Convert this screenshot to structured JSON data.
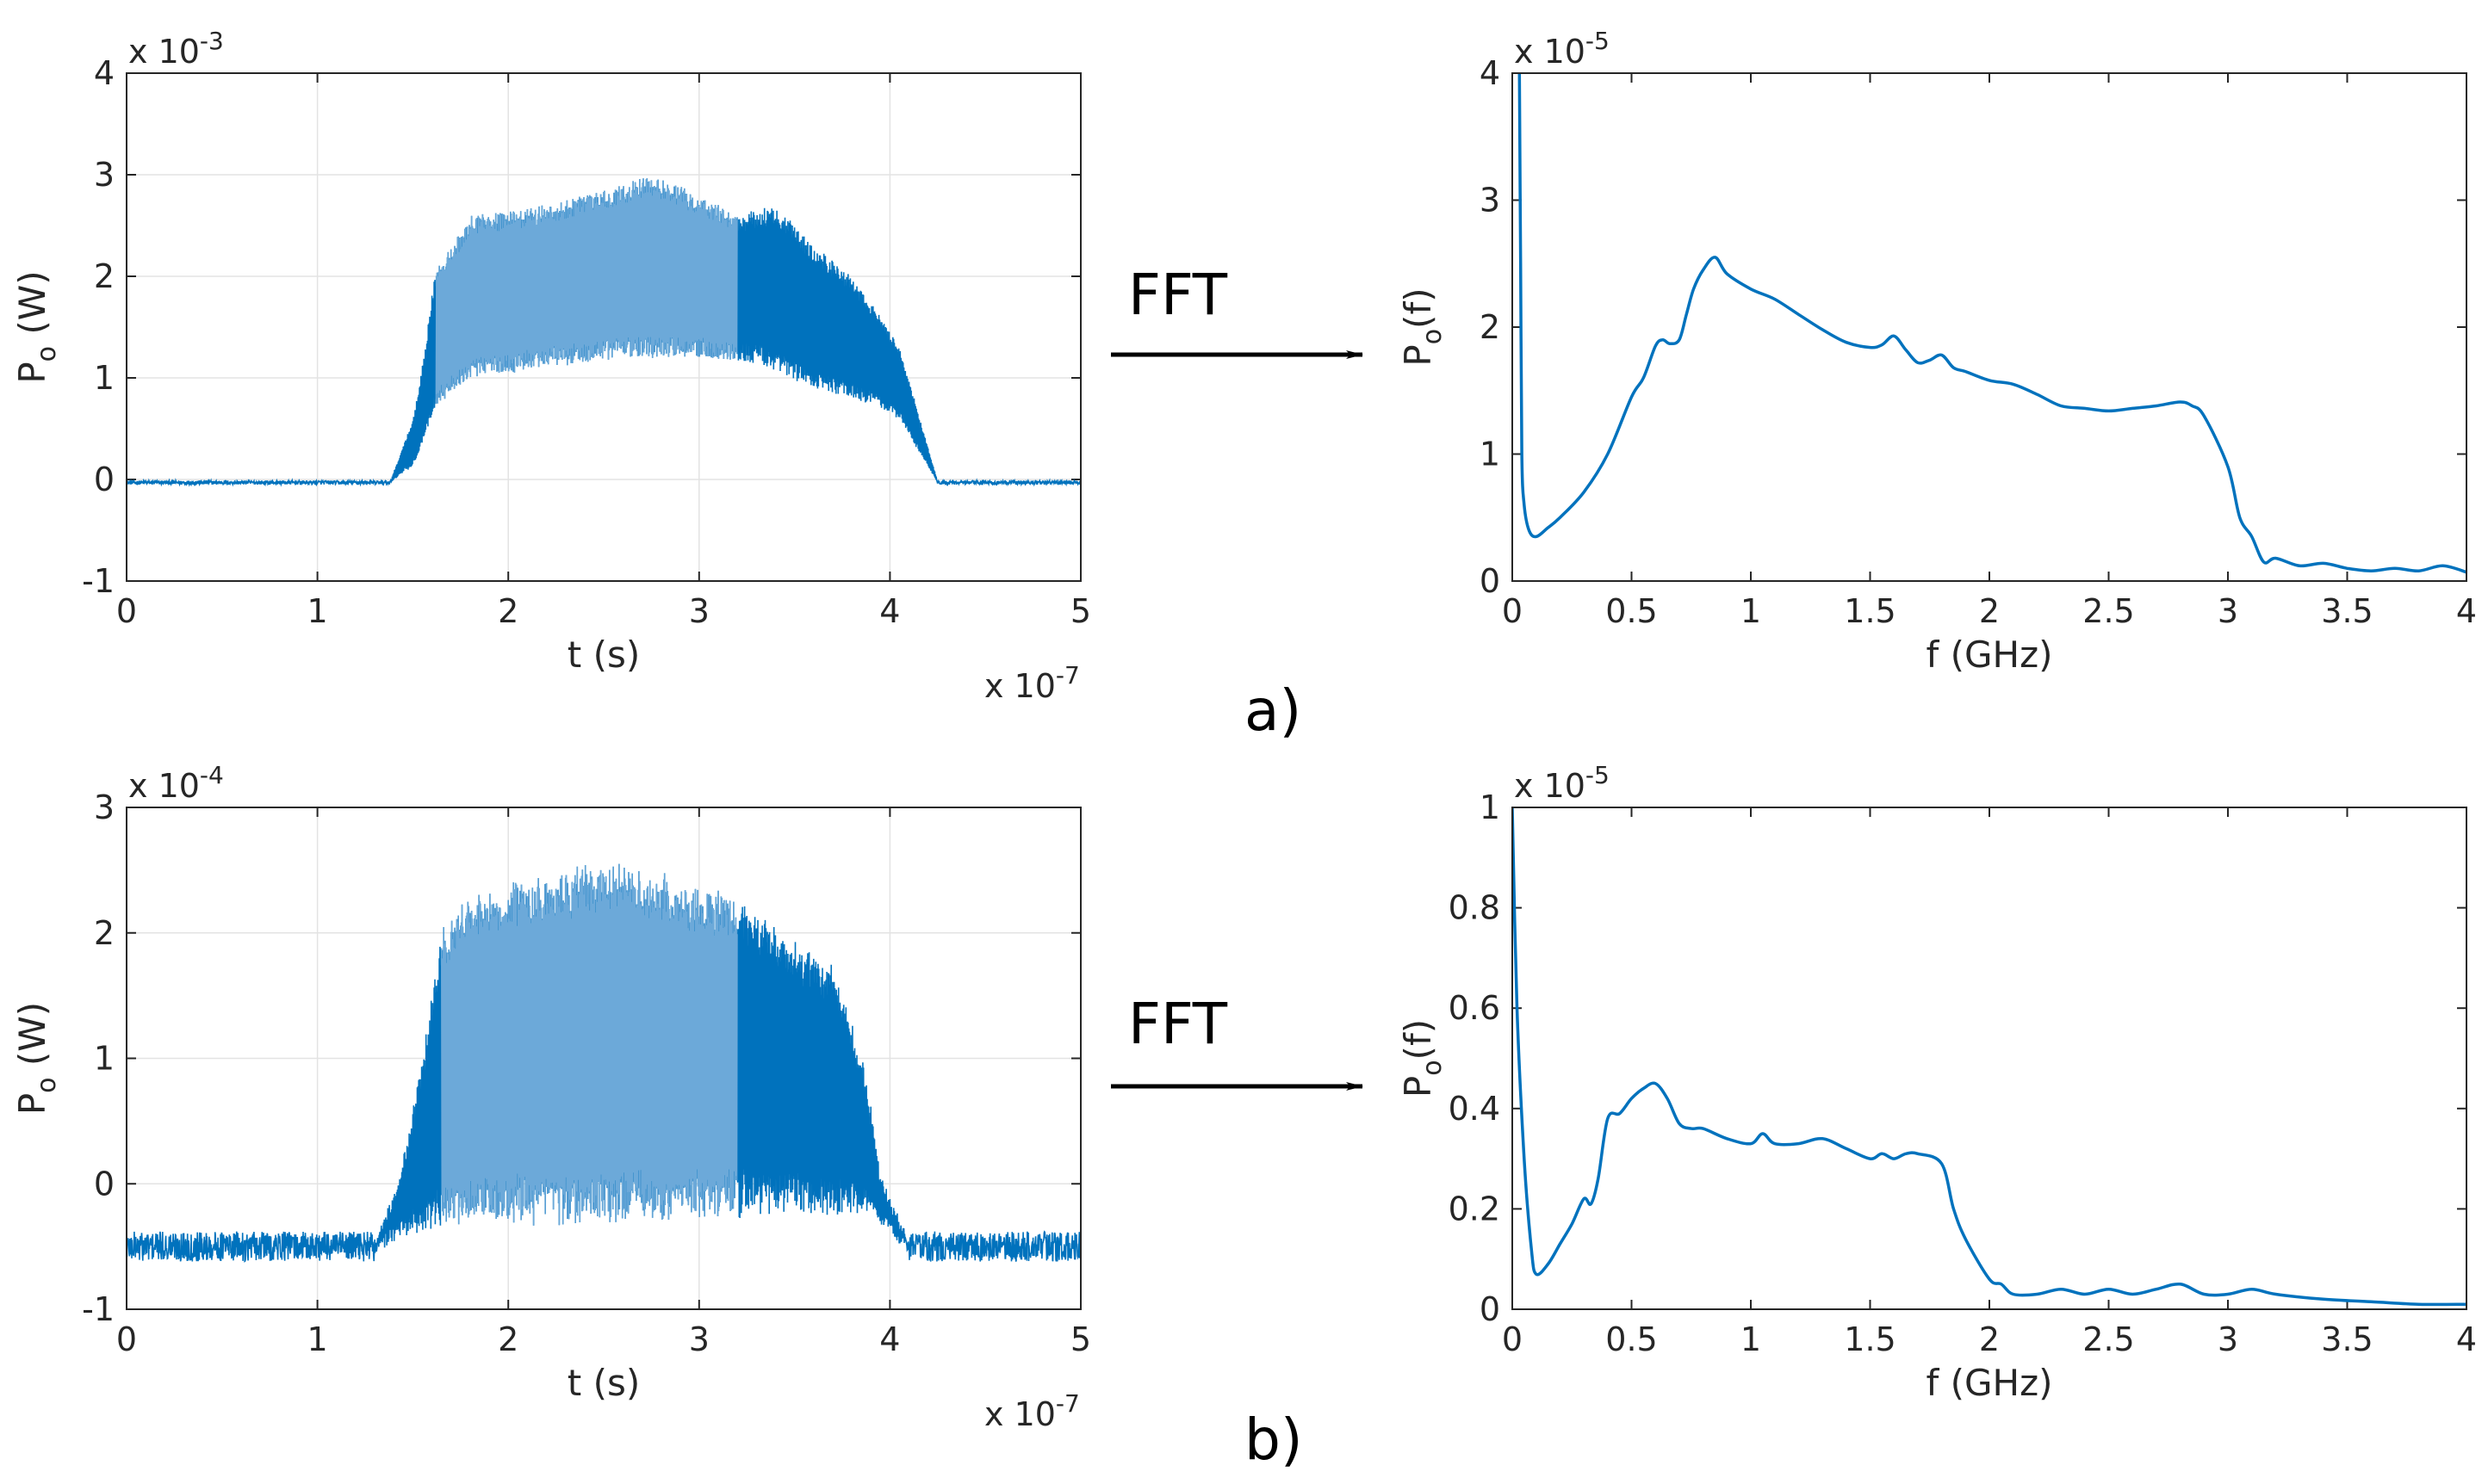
{
  "figure": {
    "panel_labels": [
      "a)",
      "b)"
    ],
    "arrow_label": "FFT",
    "line_color": "#0072BD",
    "line_color_light": "#7FB3DE"
  },
  "chart_data": [
    {
      "type": "line",
      "id": "a-time",
      "title": "",
      "xlabel": "t (s)",
      "ylabel": "P",
      "ylabel_sub": "o",
      "ylabel_suffix": " (W)",
      "xlim": [
        0,
        5
      ],
      "ylim": [
        -1,
        4
      ],
      "xticks": [
        "0",
        "1",
        "2",
        "3",
        "4",
        "5"
      ],
      "yticks": [
        "-1",
        "0",
        "1",
        "2",
        "3",
        "4"
      ],
      "x_exponent": "x 10",
      "x_exponent_power": "-7",
      "y_exponent": "x 10",
      "y_exponent_power": "-3",
      "grid": true,
      "signal": {
        "baseline": -0.03,
        "noise": 0.02,
        "rise_start": 1.38,
        "rise_end": 1.62,
        "fall_start": 4.05,
        "fall_end": 4.25,
        "upper_envelope": [
          [
            1.5,
            1.2
          ],
          [
            1.6,
            2.0
          ],
          [
            1.8,
            2.6
          ],
          [
            2.2,
            2.7
          ],
          [
            2.5,
            2.85
          ],
          [
            2.75,
            3.0
          ],
          [
            3.0,
            2.8
          ],
          [
            3.2,
            2.6
          ],
          [
            3.4,
            2.7
          ],
          [
            3.6,
            2.3
          ],
          [
            3.8,
            2.0
          ],
          [
            3.95,
            1.6
          ],
          [
            4.05,
            1.3
          ]
        ],
        "lower_envelope": [
          [
            1.5,
            0.3
          ],
          [
            1.6,
            0.7
          ],
          [
            1.8,
            1.0
          ],
          [
            2.2,
            1.1
          ],
          [
            2.6,
            1.2
          ],
          [
            3.0,
            1.2
          ],
          [
            3.3,
            1.15
          ],
          [
            3.6,
            0.9
          ],
          [
            3.9,
            0.75
          ],
          [
            4.05,
            0.6
          ]
        ]
      }
    },
    {
      "type": "line",
      "id": "a-fft",
      "title": "",
      "xlabel": "f (GHz)",
      "ylabel": "P",
      "ylabel_sub": "o",
      "ylabel_suffix": "(f)",
      "xlim": [
        0,
        4
      ],
      "ylim": [
        0,
        4
      ],
      "xticks": [
        "0",
        "0.5",
        "1",
        "1.5",
        "2",
        "2.5",
        "3",
        "3.5",
        "4"
      ],
      "yticks": [
        "0",
        "1",
        "2",
        "3",
        "4"
      ],
      "y_exponent": "x 10",
      "y_exponent_power": "-5",
      "grid": false,
      "x": [
        0.03,
        0.035,
        0.04,
        0.05,
        0.07,
        0.1,
        0.15,
        0.2,
        0.3,
        0.4,
        0.5,
        0.55,
        0.6,
        0.63,
        0.66,
        0.7,
        0.73,
        0.76,
        0.8,
        0.85,
        0.9,
        1.0,
        1.1,
        1.2,
        1.3,
        1.4,
        1.5,
        1.55,
        1.6,
        1.65,
        1.7,
        1.75,
        1.8,
        1.85,
        1.9,
        2.0,
        2.1,
        2.2,
        2.3,
        2.4,
        2.5,
        2.6,
        2.7,
        2.8,
        2.85,
        2.9,
        3.0,
        3.05,
        3.1,
        3.15,
        3.2,
        3.3,
        3.4,
        3.5,
        3.6,
        3.7,
        3.8,
        3.9,
        4.0
      ],
      "values": [
        4.0,
        2.5,
        1.0,
        0.6,
        0.4,
        0.35,
        0.42,
        0.5,
        0.7,
        1.0,
        1.45,
        1.6,
        1.85,
        1.9,
        1.87,
        1.9,
        2.1,
        2.3,
        2.45,
        2.55,
        2.42,
        2.3,
        2.22,
        2.1,
        1.98,
        1.88,
        1.84,
        1.86,
        1.93,
        1.82,
        1.72,
        1.74,
        1.78,
        1.68,
        1.65,
        1.58,
        1.55,
        1.47,
        1.38,
        1.36,
        1.34,
        1.36,
        1.38,
        1.41,
        1.38,
        1.3,
        0.9,
        0.5,
        0.35,
        0.15,
        0.18,
        0.12,
        0.14,
        0.1,
        0.08,
        0.1,
        0.08,
        0.12,
        0.07
      ]
    },
    {
      "type": "line",
      "id": "b-time",
      "title": "",
      "xlabel": "t (s)",
      "ylabel": "P",
      "ylabel_sub": "o",
      "ylabel_suffix": " (W)",
      "xlim": [
        0,
        5
      ],
      "ylim": [
        -1,
        3
      ],
      "xticks": [
        "0",
        "1",
        "2",
        "3",
        "4",
        "5"
      ],
      "yticks": [
        "-1",
        "0",
        "1",
        "2",
        "3"
      ],
      "x_exponent": "x 10",
      "x_exponent_power": "-7",
      "y_exponent": "x 10",
      "y_exponent_power": "-4",
      "grid": true,
      "signal": {
        "baseline": -0.5,
        "noise": 0.12,
        "rise_start": 1.3,
        "rise_end": 1.65,
        "fall_start": 3.9,
        "fall_end": 4.1,
        "upper_envelope": [
          [
            1.4,
            0.8
          ],
          [
            1.6,
            1.9
          ],
          [
            1.8,
            2.3
          ],
          [
            2.2,
            2.4
          ],
          [
            2.5,
            2.55
          ],
          [
            2.8,
            2.45
          ],
          [
            3.2,
            2.25
          ],
          [
            3.5,
            1.9
          ],
          [
            3.7,
            1.7
          ],
          [
            3.85,
            1.0
          ],
          [
            3.95,
            0.2
          ]
        ],
        "lower_envelope": [
          [
            1.4,
            -0.2
          ],
          [
            1.6,
            -0.3
          ],
          [
            2.0,
            -0.3
          ],
          [
            3.0,
            -0.25
          ],
          [
            3.5,
            -0.2
          ],
          [
            3.9,
            -0.2
          ]
        ]
      }
    },
    {
      "type": "line",
      "id": "b-fft",
      "title": "",
      "xlabel": "f (GHz)",
      "ylabel": "P",
      "ylabel_sub": "o",
      "ylabel_suffix": "(f)",
      "xlim": [
        0,
        4
      ],
      "ylim": [
        0,
        1
      ],
      "xticks": [
        "0",
        "0.5",
        "1",
        "1.5",
        "2",
        "2.5",
        "3",
        "3.5",
        "4"
      ],
      "yticks": [
        "0",
        "0.2",
        "0.4",
        "0.6",
        "0.8",
        "1"
      ],
      "y_exponent": "x 10",
      "y_exponent_power": "-5",
      "grid": false,
      "x": [
        0.0,
        0.02,
        0.05,
        0.08,
        0.1,
        0.15,
        0.2,
        0.25,
        0.3,
        0.33,
        0.36,
        0.4,
        0.45,
        0.5,
        0.55,
        0.6,
        0.65,
        0.7,
        0.75,
        0.8,
        0.9,
        1.0,
        1.05,
        1.1,
        1.2,
        1.3,
        1.4,
        1.5,
        1.55,
        1.6,
        1.65,
        1.7,
        1.8,
        1.85,
        1.9,
        2.0,
        2.05,
        2.1,
        2.2,
        2.3,
        2.4,
        2.5,
        2.6,
        2.7,
        2.8,
        2.9,
        3.0,
        3.1,
        3.2,
        3.4,
        3.6,
        3.8,
        4.0
      ],
      "values": [
        1.0,
        0.6,
        0.3,
        0.12,
        0.07,
        0.09,
        0.13,
        0.17,
        0.22,
        0.21,
        0.26,
        0.38,
        0.39,
        0.42,
        0.44,
        0.45,
        0.42,
        0.37,
        0.36,
        0.36,
        0.34,
        0.33,
        0.35,
        0.33,
        0.33,
        0.34,
        0.32,
        0.3,
        0.31,
        0.3,
        0.31,
        0.31,
        0.29,
        0.2,
        0.14,
        0.06,
        0.05,
        0.03,
        0.03,
        0.04,
        0.03,
        0.04,
        0.03,
        0.04,
        0.05,
        0.03,
        0.03,
        0.04,
        0.03,
        0.02,
        0.015,
        0.01,
        0.01
      ]
    }
  ]
}
